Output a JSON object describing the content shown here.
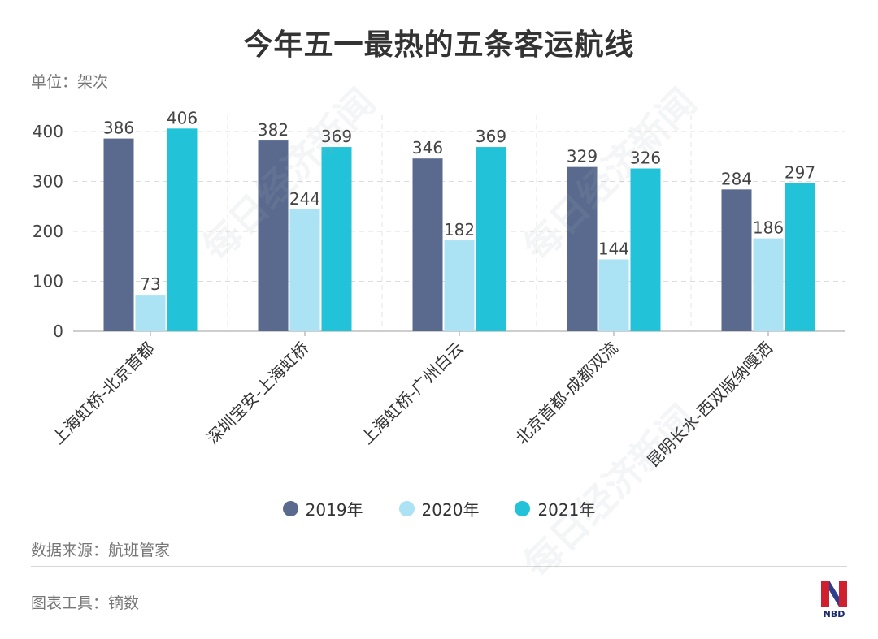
{
  "title": "今年五一最热的五条客运航线",
  "unit_label": "单位：架次",
  "source_label": "数据来源：航班管家",
  "tool_label": "图表工具：镝数",
  "watermark_text": "每日经济新闻",
  "logo_text": "NBD",
  "colors": {
    "s2019": "#5a6a8f",
    "s2020": "#abe2f4",
    "s2021": "#22c3d8"
  },
  "chart_data": {
    "type": "bar",
    "title": "今年五一最热的五条客运航线",
    "ylabel": "单位：架次",
    "ylim": [
      0,
      400
    ],
    "yticks": [
      0,
      100,
      200,
      300,
      400
    ],
    "grid": true,
    "legend_position": "bottom",
    "categories": [
      "上海虹桥-北京首都",
      "深圳宝安-上海虹桥",
      "上海虹桥-广州白云",
      "北京首都-成都双流",
      "昆明长水-西双版纳嘎洒"
    ],
    "series": [
      {
        "name": "2019年",
        "values": [
          386,
          382,
          346,
          329,
          284
        ]
      },
      {
        "name": "2020年",
        "values": [
          73,
          244,
          182,
          144,
          186
        ]
      },
      {
        "name": "2021年",
        "values": [
          406,
          369,
          369,
          326,
          297
        ]
      }
    ]
  }
}
